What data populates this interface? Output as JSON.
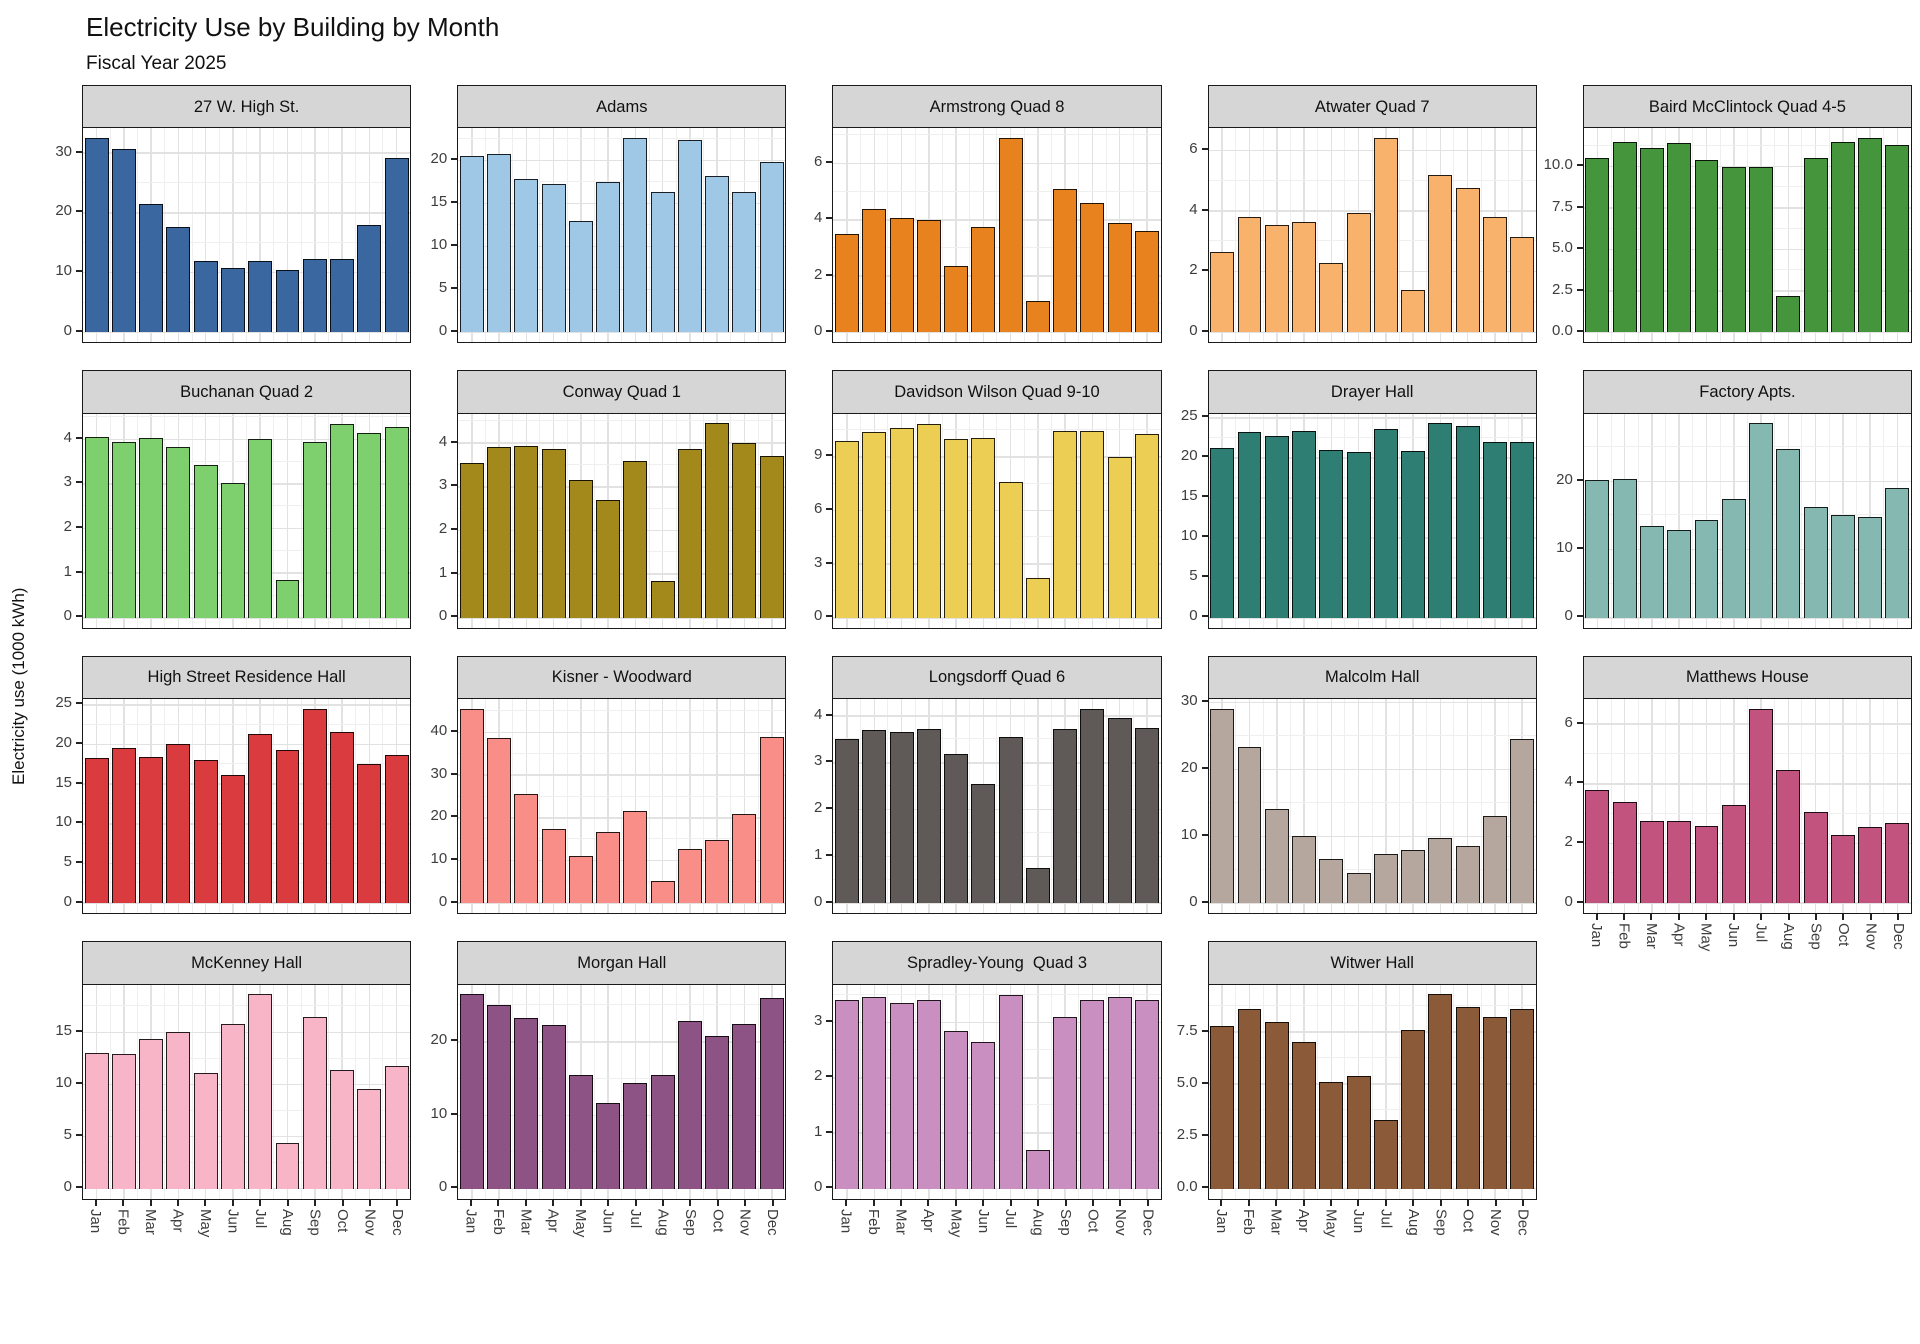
{
  "header": {
    "title": "Electricity Use by Building by Month",
    "subtitle": "Fiscal Year 2025"
  },
  "y_axis_title": "Electricity use (1000 kWh)",
  "style": {
    "strip_fill": "#D6D6D6",
    "grid_major": "#E2E2E2",
    "grid_minor": "#EFEFEF",
    "axis_text": "#3d3d3d"
  },
  "chart_data": {
    "type": "bar",
    "title": "Electricity Use by Building by Month",
    "subtitle": "Fiscal Year 2025",
    "ylabel": "Electricity use (1000 kWh)",
    "xlabel": "",
    "grid": true,
    "layout": "facet_wrap 5 columns, free y scales, x axis shown on bottom-most facet of each column",
    "categories": [
      "Jan",
      "Feb",
      "Mar",
      "Apr",
      "May",
      "Jun",
      "Jul",
      "Aug",
      "Sep",
      "Oct",
      "Nov",
      "Dec"
    ],
    "facets": [
      {
        "name": "27 W. High St.",
        "color": "#3A67A0",
        "ylim": [
          0,
          34.1
        ],
        "ticks": [
          0,
          10,
          20,
          30
        ],
        "tick_labels": [
          "0",
          "10",
          "20",
          "30"
        ],
        "show_x": false,
        "values": [
          32.5,
          30.7,
          21.5,
          17.7,
          12.0,
          10.7,
          11.9,
          10.5,
          12.3,
          12.3,
          18.0,
          29.2
        ]
      },
      {
        "name": "Adams",
        "color": "#9FC7E6",
        "ylim": [
          0,
          23.7
        ],
        "ticks": [
          0,
          5,
          10,
          15,
          20
        ],
        "tick_labels": [
          "0",
          "5",
          "10",
          "15",
          "20"
        ],
        "show_x": false,
        "values": [
          20.5,
          20.7,
          17.8,
          17.3,
          13.0,
          17.5,
          22.6,
          16.3,
          22.3,
          18.2,
          16.3,
          19.8
        ]
      },
      {
        "name": "Armstrong Quad 8",
        "color": "#E8821F",
        "ylim": [
          0,
          7.25
        ],
        "ticks": [
          0,
          2,
          4,
          6
        ],
        "tick_labels": [
          "0",
          "2",
          "4",
          "6"
        ],
        "show_x": false,
        "values": [
          3.5,
          4.4,
          4.05,
          4.0,
          2.35,
          3.75,
          6.9,
          1.1,
          5.1,
          4.6,
          3.9,
          3.6
        ]
      },
      {
        "name": "Atwater Quad 7",
        "color": "#F9B26C",
        "ylim": [
          0,
          6.72
        ],
        "ticks": [
          0,
          2,
          4,
          6
        ],
        "tick_labels": [
          "0",
          "2",
          "4",
          "6"
        ],
        "show_x": false,
        "values": [
          2.65,
          3.8,
          3.55,
          3.65,
          2.3,
          3.95,
          6.4,
          1.4,
          5.2,
          4.75,
          3.8,
          3.15
        ]
      },
      {
        "name": "Baird McClintock Quad 4-5",
        "color": "#44953C",
        "ylim": [
          0,
          12.3
        ],
        "ticks": [
          0,
          2.5,
          5,
          7.5,
          10
        ],
        "tick_labels": [
          "0.0",
          "2.5",
          "5.0",
          "7.5",
          "10.0"
        ],
        "show_x": false,
        "values": [
          10.5,
          11.5,
          11.1,
          11.4,
          10.4,
          10.0,
          10.0,
          2.2,
          10.5,
          11.5,
          11.7,
          11.3
        ]
      },
      {
        "name": "Buchanan Quad 2",
        "color": "#7ED06F",
        "ylim": [
          0,
          4.57
        ],
        "ticks": [
          0,
          1,
          2,
          3,
          4
        ],
        "tick_labels": [
          "0",
          "1",
          "2",
          "3",
          "4"
        ],
        "show_x": false,
        "values": [
          4.05,
          3.93,
          4.02,
          3.82,
          3.43,
          3.02,
          4.0,
          0.85,
          3.93,
          4.35,
          4.15,
          4.27
        ]
      },
      {
        "name": "Conway Quad 1",
        "color": "#A3891B",
        "ylim": [
          0,
          4.67
        ],
        "ticks": [
          0,
          1,
          2,
          3,
          4
        ],
        "tick_labels": [
          "0",
          "1",
          "2",
          "3",
          "4"
        ],
        "show_x": false,
        "values": [
          3.55,
          3.9,
          3.93,
          3.87,
          3.15,
          2.7,
          3.6,
          0.85,
          3.87,
          4.45,
          4.0,
          3.7
        ]
      },
      {
        "name": "Davidson Wilson Quad 9-10",
        "color": "#ECCE55",
        "ylim": [
          0,
          11.4
        ],
        "ticks": [
          0,
          3,
          6,
          9
        ],
        "tick_labels": [
          "0",
          "3",
          "6",
          "9"
        ],
        "show_x": false,
        "values": [
          9.9,
          10.4,
          10.6,
          10.85,
          10.0,
          10.05,
          7.6,
          2.2,
          10.45,
          10.45,
          9.0,
          10.3
        ]
      },
      {
        "name": "Drayer Hall",
        "color": "#2F7E74",
        "ylim": [
          0,
          25.5
        ],
        "ticks": [
          0,
          5,
          10,
          15,
          20,
          25
        ],
        "tick_labels": [
          "0",
          "5",
          "10",
          "15",
          "20",
          "25"
        ],
        "show_x": false,
        "values": [
          21.2,
          23.2,
          22.7,
          23.4,
          21.0,
          20.7,
          23.6,
          20.8,
          24.3,
          24.0,
          22.0,
          22.0
        ]
      },
      {
        "name": "Factory Apts.",
        "color": "#85B8B0",
        "ylim": [
          0,
          29.9
        ],
        "ticks": [
          0,
          10,
          20
        ],
        "tick_labels": [
          "0",
          "10",
          "20"
        ],
        "show_x": false,
        "values": [
          20.2,
          20.4,
          13.4,
          12.9,
          14.3,
          17.4,
          28.5,
          24.8,
          16.3,
          15.0,
          14.8,
          19.0
        ]
      },
      {
        "name": "High Street Residence Hall",
        "color": "#D93B3F",
        "ylim": [
          0,
          25.7
        ],
        "ticks": [
          0,
          5,
          10,
          15,
          20,
          25
        ],
        "tick_labels": [
          "0",
          "5",
          "10",
          "15",
          "20",
          "25"
        ],
        "show_x": false,
        "values": [
          18.3,
          19.5,
          18.4,
          20.1,
          18.0,
          16.2,
          21.3,
          19.3,
          24.5,
          21.6,
          17.5,
          18.7
        ]
      },
      {
        "name": "Kisner - Woodward",
        "color": "#F98E88",
        "ylim": [
          0,
          47.8
        ],
        "ticks": [
          0,
          10,
          20,
          30,
          40
        ],
        "tick_labels": [
          "0",
          "10",
          "20",
          "30",
          "40"
        ],
        "show_x": false,
        "values": [
          45.5,
          38.8,
          25.6,
          17.5,
          11.0,
          16.7,
          21.6,
          5.2,
          12.8,
          14.7,
          21.0,
          39.0
        ]
      },
      {
        "name": "Longsdorff Quad 6",
        "color": "#5F5A57",
        "ylim": [
          0,
          4.36
        ],
        "ticks": [
          0,
          1,
          2,
          3,
          4
        ],
        "tick_labels": [
          "0",
          "1",
          "2",
          "3",
          "4"
        ],
        "show_x": false,
        "values": [
          3.5,
          3.7,
          3.65,
          3.73,
          3.2,
          2.55,
          3.55,
          0.75,
          3.73,
          4.15,
          3.95,
          3.75
        ]
      },
      {
        "name": "Malcolm Hall",
        "color": "#B5A69E",
        "ylim": [
          0,
          30.5
        ],
        "ticks": [
          0,
          10,
          20,
          30
        ],
        "tick_labels": [
          "0",
          "10",
          "20",
          "30"
        ],
        "show_x": false,
        "values": [
          29.0,
          23.3,
          14.1,
          10.0,
          6.6,
          4.5,
          7.4,
          7.9,
          9.8,
          8.6,
          13.1,
          24.5
        ]
      },
      {
        "name": "Matthews House",
        "color": "#C2537F",
        "ylim": [
          0,
          6.83
        ],
        "ticks": [
          0,
          2,
          4,
          6
        ],
        "tick_labels": [
          "0",
          "2",
          "4",
          "6"
        ],
        "show_x": true,
        "values": [
          3.8,
          3.4,
          2.75,
          2.75,
          2.6,
          3.3,
          6.5,
          4.45,
          3.05,
          2.3,
          2.55,
          2.7
        ]
      },
      {
        "name": "McKenney Hall",
        "color": "#F8B5C8",
        "ylim": [
          0,
          19.6
        ],
        "ticks": [
          0,
          5,
          10,
          15
        ],
        "tick_labels": [
          "0",
          "5",
          "10",
          "15"
        ],
        "show_x": true,
        "values": [
          13.0,
          12.9,
          14.4,
          15.05,
          11.1,
          15.85,
          18.7,
          4.4,
          16.5,
          11.4,
          9.6,
          11.8
        ]
      },
      {
        "name": "Morgan Hall",
        "color": "#8D5385",
        "ylim": [
          0,
          27.8
        ],
        "ticks": [
          0,
          10,
          20
        ],
        "tick_labels": [
          "0",
          "10",
          "20"
        ],
        "show_x": true,
        "values": [
          26.5,
          25.0,
          23.2,
          22.3,
          15.5,
          11.7,
          14.4,
          15.5,
          22.8,
          20.8,
          22.4,
          26.0
        ]
      },
      {
        "name": "Spradley-Young  Quad 3",
        "color": "#C98FC0",
        "ylim": [
          0,
          3.68
        ],
        "ticks": [
          0,
          1,
          2,
          3
        ],
        "tick_labels": [
          "0",
          "1",
          "2",
          "3"
        ],
        "show_x": true,
        "values": [
          3.4,
          3.45,
          3.35,
          3.4,
          2.85,
          2.65,
          3.5,
          0.7,
          3.1,
          3.4,
          3.45,
          3.4
        ]
      },
      {
        "name": "Witwer Hall",
        "color": "#8A5A39",
        "ylim": [
          0,
          9.77
        ],
        "ticks": [
          0,
          2.5,
          5,
          7.5
        ],
        "tick_labels": [
          "0.0",
          "2.5",
          "5.0",
          "7.5"
        ],
        "show_x": true,
        "values": [
          7.8,
          8.6,
          8.0,
          7.0,
          5.1,
          5.4,
          3.3,
          7.6,
          9.3,
          8.7,
          8.2,
          8.6
        ]
      }
    ]
  }
}
